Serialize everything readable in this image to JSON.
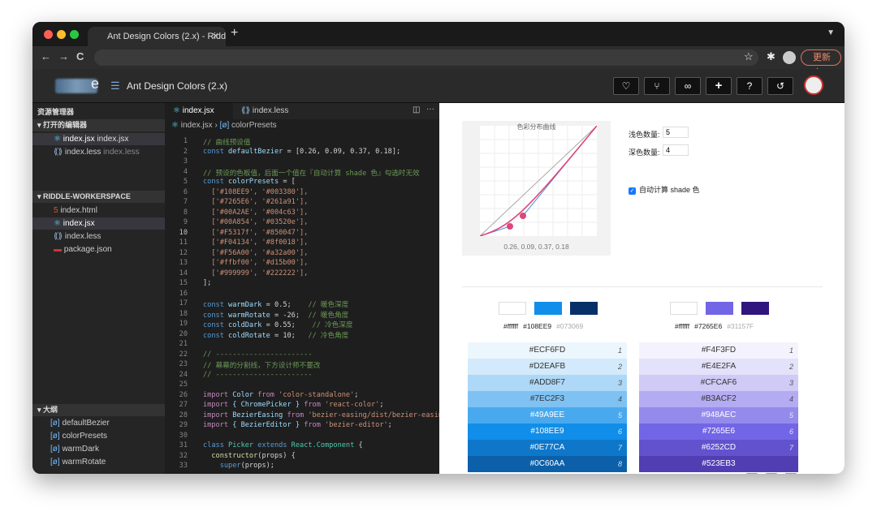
{
  "browser": {
    "tab_title": "Ant Design Colors (2.x) - Riddl…",
    "update_label": "更新 ⋮"
  },
  "header": {
    "logo_suffix": "e",
    "title": "Ant Design Colors (2.x)",
    "toolbar_icons": [
      "heart-icon",
      "fork-icon",
      "link-icon",
      "plus-icon",
      "help-icon",
      "history-icon"
    ]
  },
  "sidebar": {
    "explorer_title": "资源管理器",
    "open_editors_title": "打开的编辑器",
    "open_editors": [
      {
        "name": "index.jsx",
        "hint": "index.jsx"
      },
      {
        "name": "index.less",
        "hint": "index.less"
      }
    ],
    "workspace_title": "RIDDLE-WORKERSPACE",
    "files": [
      "index.html",
      "index.jsx",
      "index.less",
      "package.json"
    ],
    "outline_title": "大纲",
    "outline": [
      "defaultBezier",
      "colorPresets",
      "warmDark",
      "warmRotate"
    ]
  },
  "editor": {
    "tabs": [
      "index.jsx",
      "index.less"
    ],
    "breadcrumb": {
      "file": "index.jsx",
      "symbol": "colorPresets"
    },
    "lines": [
      [
        {
          "t": "// 曲线预设值",
          "c": "#6a9955"
        }
      ],
      [
        {
          "t": "const ",
          "c": "#569cd6"
        },
        {
          "t": "defaultBezier",
          "c": "#9cdcfe"
        },
        {
          "t": " = [0.26, 0.09, 0.37, 0.18];",
          "c": "#d4d4d4"
        }
      ],
      [],
      [
        {
          "t": "// 预设的色板值，后面一个值在『自动计算 shade 色』勾选时无效",
          "c": "#6a9955"
        }
      ],
      [
        {
          "t": "const ",
          "c": "#569cd6"
        },
        {
          "t": "colorPresets",
          "c": "#9cdcfe"
        },
        {
          "t": " = [",
          "c": "#d4d4d4"
        }
      ],
      [
        {
          "t": "  ['#108EE9', '#003380'],",
          "c": "#ce9178"
        }
      ],
      [
        {
          "t": "  ['#7265E6', '#261a91'],",
          "c": "#ce9178"
        }
      ],
      [
        {
          "t": "  ['#00A2AE', '#004c63'],",
          "c": "#ce9178"
        }
      ],
      [
        {
          "t": "  ['#00A854', '#03520e'],",
          "c": "#ce9178"
        }
      ],
      [
        {
          "t": "  ['#F5317f', '#850047'],",
          "c": "#ce9178"
        }
      ],
      [
        {
          "t": "  ['#F04134', '#8f0018'],",
          "c": "#ce9178"
        }
      ],
      [
        {
          "t": "  ['#F56A00', '#a32a00'],",
          "c": "#ce9178"
        }
      ],
      [
        {
          "t": "  ['#ffbf00', '#d15b00'],",
          "c": "#ce9178"
        }
      ],
      [
        {
          "t": "  ['#999999', '#222222'],",
          "c": "#ce9178"
        }
      ],
      [
        {
          "t": "];",
          "c": "#d4d4d4"
        }
      ],
      [],
      [
        {
          "t": "const ",
          "c": "#569cd6"
        },
        {
          "t": "warmDark",
          "c": "#9cdcfe"
        },
        {
          "t": " = 0.5;    ",
          "c": "#d4d4d4"
        },
        {
          "t": "// 暖色深度",
          "c": "#6a9955"
        }
      ],
      [
        {
          "t": "const ",
          "c": "#569cd6"
        },
        {
          "t": "warmRotate",
          "c": "#9cdcfe"
        },
        {
          "t": " = -26;  ",
          "c": "#d4d4d4"
        },
        {
          "t": "// 暖色角度",
          "c": "#6a9955"
        }
      ],
      [
        {
          "t": "const ",
          "c": "#569cd6"
        },
        {
          "t": "coldDark",
          "c": "#9cdcfe"
        },
        {
          "t": " = 0.55;    ",
          "c": "#d4d4d4"
        },
        {
          "t": "// 冷色深度",
          "c": "#6a9955"
        }
      ],
      [
        {
          "t": "const ",
          "c": "#569cd6"
        },
        {
          "t": "coldRotate",
          "c": "#9cdcfe"
        },
        {
          "t": " = 10;   ",
          "c": "#d4d4d4"
        },
        {
          "t": "// 冷色角度",
          "c": "#6a9955"
        }
      ],
      [],
      [
        {
          "t": "// -----------------------",
          "c": "#6a9955"
        }
      ],
      [
        {
          "t": "// 幕幕的分割线，下方设计师不要改",
          "c": "#6a9955"
        }
      ],
      [
        {
          "t": "// -----------------------",
          "c": "#6a9955"
        }
      ],
      [],
      [
        {
          "t": "import ",
          "c": "#c586c0"
        },
        {
          "t": "Color",
          "c": "#9cdcfe"
        },
        {
          "t": " from ",
          "c": "#c586c0"
        },
        {
          "t": "'color-standalone'",
          "c": "#ce9178"
        },
        {
          "t": ";",
          "c": "#d4d4d4"
        }
      ],
      [
        {
          "t": "import ",
          "c": "#c586c0"
        },
        {
          "t": "{ ChromePicker }",
          "c": "#9cdcfe"
        },
        {
          "t": " from ",
          "c": "#c586c0"
        },
        {
          "t": "'react-color'",
          "c": "#ce9178"
        },
        {
          "t": ";",
          "c": "#d4d4d4"
        }
      ],
      [
        {
          "t": "import ",
          "c": "#c586c0"
        },
        {
          "t": "BezierEasing",
          "c": "#9cdcfe"
        },
        {
          "t": " from ",
          "c": "#c586c0"
        },
        {
          "t": "'bezier-easing/dist/bezier-easin",
          "c": "#ce9178"
        }
      ],
      [
        {
          "t": "import ",
          "c": "#c586c0"
        },
        {
          "t": "{ BezierEditor }",
          "c": "#9cdcfe"
        },
        {
          "t": " from ",
          "c": "#c586c0"
        },
        {
          "t": "'bezier-editor'",
          "c": "#ce9178"
        },
        {
          "t": ";",
          "c": "#d4d4d4"
        }
      ],
      [],
      [
        {
          "t": "class ",
          "c": "#569cd6"
        },
        {
          "t": "Picker",
          "c": "#4ec9b0"
        },
        {
          "t": " extends ",
          "c": "#569cd6"
        },
        {
          "t": "React.Component",
          "c": "#4ec9b0"
        },
        {
          "t": " {",
          "c": "#d4d4d4"
        }
      ],
      [
        {
          "t": "  constructor",
          "c": "#dcdcaa"
        },
        {
          "t": "(props) {",
          "c": "#d4d4d4"
        }
      ],
      [
        {
          "t": "    super",
          "c": "#569cd6"
        },
        {
          "t": "(props);",
          "c": "#d4d4d4"
        }
      ]
    ]
  },
  "preview": {
    "curve_title": "色彩分布曲线",
    "curve_value": "0.26, 0.09, 0.37, 0.18",
    "light_label": "浅色数量:",
    "light_value": "5",
    "dark_label": "深色数量:",
    "dark_value": "4",
    "auto_shade_label": "自动计算 shade 色",
    "palettes": [
      {
        "swatches": [
          "#ffffff",
          "#108EE9",
          "#073069"
        ],
        "labels": [
          "#ffffff",
          "#108EE9",
          "#073069"
        ],
        "cells": [
          {
            "hex": "#ECF6FD",
            "idx": "1"
          },
          {
            "hex": "#D2EAFB",
            "idx": "2"
          },
          {
            "hex": "#ADD8F7",
            "idx": "3"
          },
          {
            "hex": "#7EC2F3",
            "idx": "4"
          },
          {
            "hex": "#49A9EE",
            "idx": "5"
          },
          {
            "hex": "#108EE9",
            "idx": "6"
          },
          {
            "hex": "#0E77CA",
            "idx": "7"
          },
          {
            "hex": "#0C60AA",
            "idx": "8"
          }
        ]
      },
      {
        "swatches": [
          "#ffffff",
          "#7265E6",
          "#31157F"
        ],
        "labels": [
          "#ffffff",
          "#7265E6",
          "#31157F"
        ],
        "cells": [
          {
            "hex": "#F4F3FD",
            "idx": "1"
          },
          {
            "hex": "#E4E2FA",
            "idx": "2"
          },
          {
            "hex": "#CFCAF6",
            "idx": "3"
          },
          {
            "hex": "#B3ACF2",
            "idx": "4"
          },
          {
            "hex": "#948AEC",
            "idx": "5"
          },
          {
            "hex": "#7265E6",
            "idx": "6"
          },
          {
            "hex": "#6252CD",
            "idx": "7"
          },
          {
            "hex": "#523EB3",
            "idx": ""
          }
        ]
      }
    ]
  }
}
